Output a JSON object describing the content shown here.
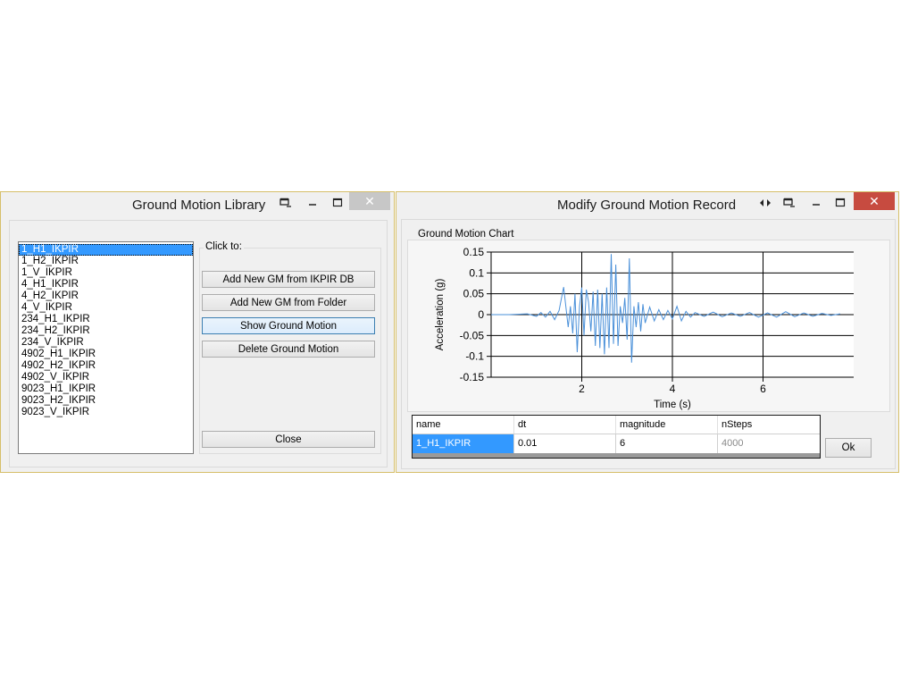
{
  "library_window": {
    "title": "Ground Motion Library",
    "items": [
      "1_H1_IKPIR",
      "1_H2_IKPIR",
      "1_V_IKPIR",
      "4_H1_IKPIR",
      "4_H2_IKPIR",
      "4_V_IKPIR",
      "234_H1_IKPIR",
      "234_H2_IKPIR",
      "234_V_IKPIR",
      "4902_H1_IKPIR",
      "4902_H2_IKPIR",
      "4902_V_IKPIR",
      "9023_H1_IKPIR",
      "9023_H2_IKPIR",
      "9023_V_IKPIR"
    ],
    "selected_index": 0,
    "group_label": "Click to:",
    "buttons": {
      "add_db": "Add New GM from IKPIR DB",
      "add_folder": "Add New GM from Folder",
      "show": "Show Ground Motion",
      "delete": "Delete Ground Motion",
      "close": "Close"
    },
    "titlebar_icons": [
      "restore-icon",
      "minimize-icon",
      "maximize-icon",
      "close-icon"
    ]
  },
  "record_window": {
    "title": "Modify Ground Motion Record",
    "chart_group_label": "Ground Motion Chart",
    "table": {
      "columns": [
        "name",
        "dt",
        "magnitude",
        "nSteps"
      ],
      "row": [
        "1_H1_IKPIR",
        "0.01",
        "6",
        "4000"
      ]
    },
    "ok_label": "Ok",
    "titlebar_icons": [
      "resize-icon",
      "restore-icon",
      "minimize-icon",
      "maximize-icon",
      "close-icon"
    ],
    "close_color": "#c74b40"
  },
  "chart_data": {
    "type": "line",
    "title": "",
    "xlabel": "Time (s)",
    "ylabel": "Acceleration (g)",
    "xlim": [
      0,
      8
    ],
    "ylim": [
      -0.15,
      0.15
    ],
    "x_ticks": [
      2,
      4,
      6
    ],
    "y_ticks": [
      "0.15",
      "0.1",
      "0.05",
      "0",
      "-0.05",
      "-0.1",
      "-0.15"
    ],
    "grid": true,
    "line_color": "#4a90d9",
    "series": [
      {
        "x": [
          0,
          0.4,
          0.8,
          1.0,
          1.1,
          1.2,
          1.3,
          1.4,
          1.5,
          1.6,
          1.7,
          1.75,
          1.8,
          1.85,
          1.9,
          1.95,
          2.0,
          2.05,
          2.1,
          2.15,
          2.2,
          2.25,
          2.3,
          2.35,
          2.4,
          2.45,
          2.5,
          2.55,
          2.6,
          2.65,
          2.7,
          2.75,
          2.8,
          2.85,
          2.9,
          2.95,
          3.0,
          3.05,
          3.1,
          3.15,
          3.2,
          3.25,
          3.3,
          3.35,
          3.4,
          3.5,
          3.6,
          3.7,
          3.8,
          3.9,
          4.0,
          4.1,
          4.2,
          4.3,
          4.4,
          4.5,
          4.7,
          4.9,
          5.1,
          5.3,
          5.5,
          5.7,
          5.9,
          6.1,
          6.3,
          6.5,
          6.7,
          6.9,
          7.1,
          7.3,
          7.5,
          7.7
        ],
        "y": [
          0,
          0,
          0.002,
          -0.004,
          0.005,
          -0.006,
          0.008,
          -0.012,
          0.01,
          0.066,
          -0.03,
          0.02,
          -0.045,
          0.05,
          -0.09,
          0.02,
          0.065,
          -0.05,
          0.06,
          0.03,
          -0.04,
          0.055,
          -0.075,
          0.06,
          -0.08,
          0.05,
          -0.095,
          0.065,
          -0.08,
          0.145,
          -0.07,
          0.12,
          -0.075,
          0.02,
          -0.02,
          0.04,
          -0.06,
          0.135,
          -0.115,
          0.02,
          -0.03,
          0.03,
          -0.04,
          0.025,
          -0.02,
          0.018,
          -0.015,
          0.012,
          -0.012,
          0.01,
          -0.01,
          0.02,
          -0.015,
          0.008,
          -0.006,
          0.005,
          -0.004,
          0.006,
          -0.005,
          0.004,
          -0.004,
          0.005,
          -0.006,
          0.004,
          -0.006,
          0.007,
          -0.005,
          0.004,
          -0.004,
          0.003,
          -0.002,
          0.002
        ]
      }
    ]
  }
}
